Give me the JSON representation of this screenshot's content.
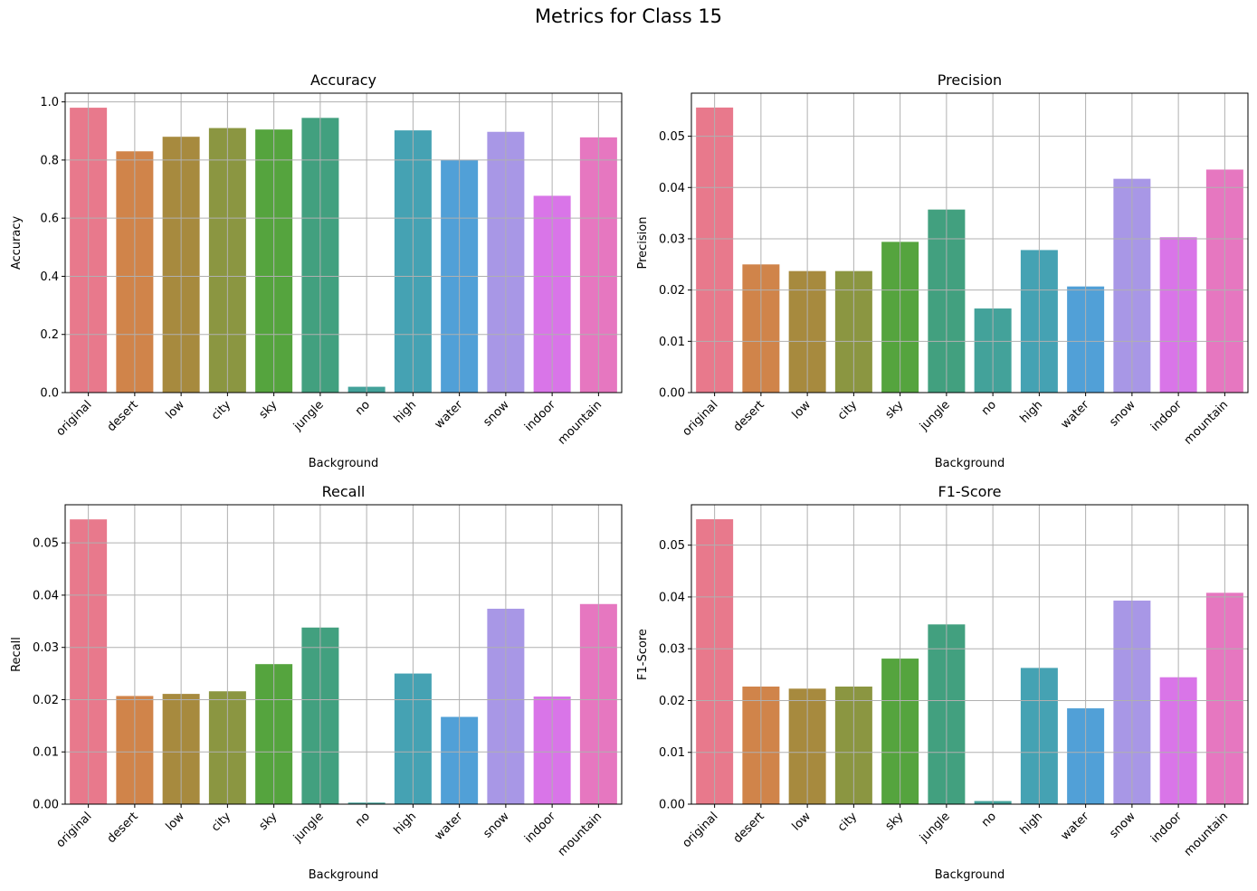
{
  "figure": {
    "suptitle": "Metrics for Class 15"
  },
  "colors": [
    "#e8798c",
    "#d0844a",
    "#a78a3e",
    "#8b9641",
    "#55a43e",
    "#42a07f",
    "#43a29a",
    "#45a2b3",
    "#51a0d7",
    "#a897e6",
    "#d975e8",
    "#e677c0"
  ],
  "chart_data": [
    {
      "type": "bar",
      "title": "Accuracy",
      "xlabel": "Background",
      "ylabel": "Accuracy",
      "categories": [
        "original",
        "desert",
        "low",
        "city",
        "sky",
        "jungle",
        "no",
        "high",
        "water",
        "snow",
        "indoor",
        "mountain"
      ],
      "values": [
        0.98,
        0.83,
        0.88,
        0.91,
        0.905,
        0.945,
        0.02,
        0.902,
        0.8,
        0.897,
        0.677,
        0.878
      ],
      "ylim": [
        0,
        1.03
      ],
      "yticks": [
        0.0,
        0.2,
        0.4,
        0.6,
        0.8,
        1.0
      ],
      "ytick_labels": [
        "0.0",
        "0.2",
        "0.4",
        "0.6",
        "0.8",
        "1.0"
      ],
      "grid": true
    },
    {
      "type": "bar",
      "title": "Precision",
      "xlabel": "Background",
      "ylabel": "Precision",
      "categories": [
        "original",
        "desert",
        "low",
        "city",
        "sky",
        "jungle",
        "no",
        "high",
        "water",
        "snow",
        "indoor",
        "mountain"
      ],
      "values": [
        0.0556,
        0.025,
        0.0237,
        0.0237,
        0.0294,
        0.0357,
        0.0164,
        0.0278,
        0.0207,
        0.0417,
        0.0303,
        0.0435
      ],
      "ylim": [
        0,
        0.0584
      ],
      "yticks": [
        0.0,
        0.01,
        0.02,
        0.03,
        0.04,
        0.05
      ],
      "ytick_labels": [
        "0.00",
        "0.01",
        "0.02",
        "0.03",
        "0.04",
        "0.05"
      ],
      "grid": true
    },
    {
      "type": "bar",
      "title": "Recall",
      "xlabel": "Background",
      "ylabel": "Recall",
      "categories": [
        "original",
        "desert",
        "low",
        "city",
        "sky",
        "jungle",
        "no",
        "high",
        "water",
        "snow",
        "indoor",
        "mountain"
      ],
      "values": [
        0.0545,
        0.0207,
        0.0211,
        0.0216,
        0.0268,
        0.0338,
        0.0003,
        0.025,
        0.0167,
        0.0374,
        0.0206,
        0.0383
      ],
      "ylim": [
        0,
        0.0573
      ],
      "yticks": [
        0.0,
        0.01,
        0.02,
        0.03,
        0.04,
        0.05
      ],
      "ytick_labels": [
        "0.00",
        "0.01",
        "0.02",
        "0.03",
        "0.04",
        "0.05"
      ],
      "grid": true
    },
    {
      "type": "bar",
      "title": "F1-Score",
      "xlabel": "Background",
      "ylabel": "F1-Score",
      "categories": [
        "original",
        "desert",
        "low",
        "city",
        "sky",
        "jungle",
        "no",
        "high",
        "water",
        "snow",
        "indoor",
        "mountain"
      ],
      "values": [
        0.055,
        0.0227,
        0.0223,
        0.0227,
        0.0281,
        0.0347,
        0.0006,
        0.0263,
        0.0185,
        0.0393,
        0.0245,
        0.0408
      ],
      "ylim": [
        0,
        0.0578
      ],
      "yticks": [
        0.0,
        0.01,
        0.02,
        0.03,
        0.04,
        0.05
      ],
      "ytick_labels": [
        "0.00",
        "0.01",
        "0.02",
        "0.03",
        "0.04",
        "0.05"
      ],
      "grid": true
    }
  ]
}
